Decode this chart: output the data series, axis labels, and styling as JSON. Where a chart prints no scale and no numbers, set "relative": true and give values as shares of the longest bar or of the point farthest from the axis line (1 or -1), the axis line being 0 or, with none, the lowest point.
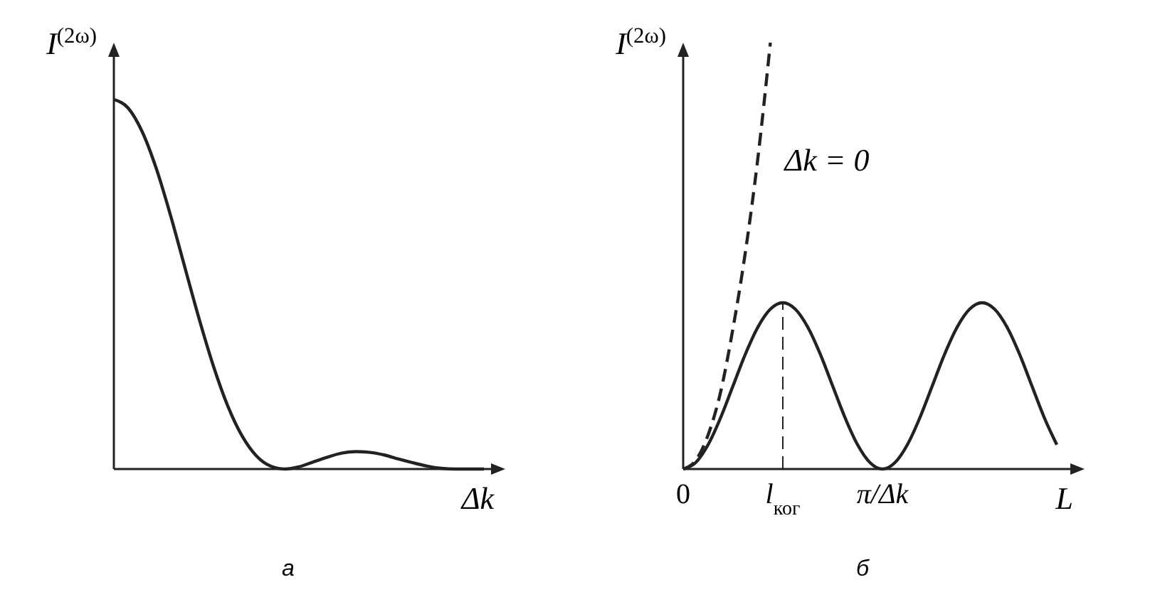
{
  "chart_data": [
    {
      "type": "line",
      "relative": true,
      "ylabel": "I$^{(2ω)}$",
      "xlabel": "Δk",
      "annotations": [
        "а"
      ],
      "categories": [
        null,
        null,
        null,
        null,
        null,
        null,
        null,
        null,
        null,
        null,
        null,
        null,
        null,
        null,
        null,
        null,
        null,
        null,
        null,
        null,
        null,
        null,
        null,
        null,
        null,
        null,
        null
      ],
      "series": [
        {
          "color": "#222222",
          "line_style": "solid",
          "values": [
            1,
            0.977,
            0.912,
            0.811,
            0.684,
            0.544,
            0.405,
            0.278,
            0.171,
            0.09,
            0.036,
            0.008,
            0,
            0.006,
            0.019,
            0.032,
            0.043,
            0.047,
            0.045,
            0.038,
            0.027,
            0.017,
            0.008,
            0.002,
            0,
            0,
            0
          ]
        }
      ]
    },
    {
      "type": "line",
      "relative": true,
      "ylabel": "I$^{(2ω)}$",
      "xlabel": "L",
      "annotations": [
        "б",
        "Δk = 0"
      ],
      "categories": [
        "0",
        null,
        null,
        null,
        null,
        null,
        null,
        null,
        "l$_{ког}$",
        null,
        null,
        null,
        null,
        null,
        null,
        null,
        "π/Δk",
        null,
        null,
        null,
        null,
        null,
        null,
        null,
        null,
        null,
        null,
        null,
        null,
        null,
        null
      ],
      "ref_lines": [
        {
          "axis": "x",
          "value": "l$_{ког}$",
          "line_style": "dashed"
        }
      ],
      "series": [
        {
          "color": "#222222",
          "line_style": "solid",
          "values": [
            0,
            0.015,
            0.057,
            0.12,
            0.195,
            0.27,
            0.333,
            0.375,
            0.39,
            0.375,
            0.333,
            0.27,
            0.195,
            0.12,
            0.057,
            0.015,
            0,
            0.015,
            0.057,
            0.12,
            0.195,
            0.27,
            0.333,
            0.375,
            0.39,
            0.375,
            0.333,
            0.27,
            0.195,
            0.12,
            0.057
          ]
        },
        {
          "color": "#222222",
          "line_style": "dashed",
          "values": [
            0,
            0.02,
            0.08,
            0.18,
            0.33,
            0.51,
            0.73,
            1,
            null,
            null,
            null,
            null,
            null,
            null,
            null,
            null,
            null,
            null,
            null,
            null,
            null,
            null,
            null,
            null,
            null,
            null,
            null,
            null,
            null,
            null,
            null
          ]
        }
      ]
    }
  ]
}
